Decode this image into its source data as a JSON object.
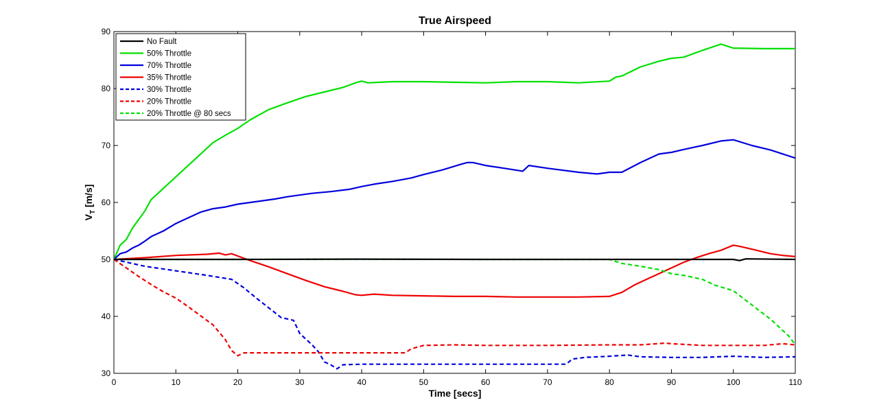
{
  "chart_data": {
    "type": "line",
    "title": "True Airspeed",
    "xlabel": "Time [secs]",
    "ylabel_main": "V",
    "ylabel_sub": "T",
    "ylabel_unit": " [m/s]",
    "xlim": [
      0,
      110
    ],
    "ylim": [
      30,
      90
    ],
    "xticks": [
      0,
      10,
      20,
      30,
      40,
      50,
      60,
      70,
      80,
      90,
      100,
      110
    ],
    "yticks": [
      30,
      40,
      50,
      60,
      70,
      80,
      90
    ],
    "grid": false,
    "legend_position": "top-left",
    "series": [
      {
        "name": "No Fault",
        "color": "#000000",
        "dash": false,
        "x": [
          0,
          10,
          20,
          40,
          60,
          80,
          95,
          100,
          101,
          102,
          110
        ],
        "y": [
          50,
          50,
          50,
          50.05,
          50,
          50,
          50,
          50,
          49.8,
          50.1,
          50
        ]
      },
      {
        "name": "50% Throttle",
        "color": "#00e000",
        "dash": false,
        "x": [
          0,
          1,
          2,
          3,
          4,
          5,
          6,
          8,
          10,
          12,
          14,
          16,
          18,
          20,
          22,
          25,
          28,
          31,
          34,
          37,
          39,
          40,
          41,
          45,
          50,
          55,
          60,
          65,
          70,
          75,
          80,
          81,
          82,
          85,
          88,
          90,
          92,
          95,
          98,
          100,
          105,
          110
        ],
        "y": [
          50,
          52.5,
          53.5,
          55.5,
          57,
          58.5,
          60.5,
          62.5,
          64.5,
          66.5,
          68.5,
          70.5,
          71.8,
          73,
          74.5,
          76.3,
          77.5,
          78.6,
          79.4,
          80.2,
          81,
          81.3,
          81,
          81.2,
          81.2,
          81.1,
          81.0,
          81.2,
          81.2,
          81.0,
          81.3,
          82.0,
          82.2,
          83.8,
          84.8,
          85.3,
          85.5,
          86.7,
          87.8,
          87.1,
          87.0,
          87.0
        ]
      },
      {
        "name": "70% Throttle",
        "color": "#0000dd",
        "dash": false,
        "x": [
          0,
          1,
          2,
          3,
          4,
          5,
          6,
          8,
          10,
          12,
          14,
          16,
          18,
          20,
          22,
          24,
          26,
          28,
          30,
          32,
          35,
          38,
          40,
          42,
          45,
          48,
          50,
          53,
          56,
          57,
          58,
          60,
          63,
          66,
          67,
          70,
          75,
          78,
          80,
          82,
          85,
          88,
          90,
          92,
          95,
          98,
          100,
          103,
          106,
          110
        ],
        "y": [
          50,
          51,
          51.3,
          52,
          52.5,
          53.2,
          54,
          55,
          56.3,
          57.3,
          58.3,
          58.9,
          59.2,
          59.7,
          60.0,
          60.3,
          60.6,
          61.0,
          61.3,
          61.6,
          61.9,
          62.3,
          62.8,
          63.2,
          63.7,
          64.3,
          64.9,
          65.7,
          66.7,
          67.0,
          67.0,
          66.5,
          66.0,
          65.5,
          66.5,
          66.0,
          65.3,
          65.0,
          65.3,
          65.3,
          67.0,
          68.5,
          68.8,
          69.3,
          70.0,
          70.8,
          71.0,
          70.0,
          69.2,
          67.8
        ]
      },
      {
        "name": "35% Throttle",
        "color": "#ee0000",
        "dash": false,
        "x": [
          0,
          5,
          10,
          15,
          17,
          18,
          19,
          20,
          22,
          25,
          28,
          31,
          34,
          37,
          39,
          40,
          42,
          45,
          50,
          55,
          60,
          65,
          70,
          75,
          80,
          82,
          84,
          86,
          88,
          90,
          92,
          94,
          96,
          98,
          100,
          101,
          103,
          106,
          108,
          110
        ],
        "y": [
          50,
          50.3,
          50.7,
          50.9,
          51.1,
          50.8,
          51.0,
          50.6,
          49.8,
          48.7,
          47.5,
          46.3,
          45.2,
          44.4,
          43.8,
          43.7,
          43.9,
          43.7,
          43.6,
          43.5,
          43.5,
          43.4,
          43.4,
          43.4,
          43.5,
          44.2,
          45.5,
          46.5,
          47.5,
          48.5,
          49.5,
          50.3,
          51.0,
          51.6,
          52.5,
          52.3,
          51.8,
          51.0,
          50.7,
          50.5
        ]
      },
      {
        "name": "30% Throttle",
        "color": "#0000dd",
        "dash": true,
        "x": [
          0,
          5,
          10,
          15,
          19,
          21,
          23,
          25,
          27,
          29,
          30,
          31,
          32,
          33,
          34,
          35,
          36,
          37,
          40,
          50,
          60,
          70,
          73,
          74,
          76,
          80,
          83,
          85,
          90,
          95,
          100,
          105,
          110
        ],
        "y": [
          50,
          48.8,
          48.0,
          47.2,
          46.5,
          45.0,
          43.2,
          41.5,
          39.8,
          39.3,
          37.0,
          36.0,
          35.0,
          33.8,
          32.0,
          31.5,
          30.8,
          31.5,
          31.6,
          31.6,
          31.6,
          31.6,
          31.6,
          32.5,
          32.8,
          33.0,
          33.2,
          32.9,
          32.8,
          32.8,
          33.0,
          32.8,
          32.9
        ]
      },
      {
        "name": "20% Throttle",
        "color": "#ee0000",
        "dash": true,
        "x": [
          0,
          2,
          4,
          6,
          8,
          10,
          12,
          14,
          16,
          18,
          19,
          20,
          21,
          25,
          30,
          35,
          40,
          47,
          48,
          50,
          55,
          60,
          70,
          80,
          85,
          89,
          90,
          95,
          100,
          105,
          108,
          110
        ],
        "y": [
          50,
          48.5,
          47.0,
          45.6,
          44.3,
          43.2,
          41.7,
          40.1,
          38.5,
          35.9,
          34.0,
          33.1,
          33.6,
          33.6,
          33.6,
          33.6,
          33.6,
          33.6,
          34.3,
          34.9,
          35.0,
          34.9,
          34.9,
          35.0,
          35.0,
          35.3,
          35.2,
          34.9,
          34.9,
          34.9,
          35.2,
          35.0
        ]
      },
      {
        "name": "20% Throttle @ 80 secs",
        "color": "#00e000",
        "dash": true,
        "x": [
          0,
          10,
          20,
          40,
          60,
          80,
          82,
          85,
          88,
          90,
          92,
          95,
          97,
          100,
          103,
          106,
          109,
          110
        ],
        "y": [
          50,
          50,
          50,
          50.05,
          50,
          50,
          49.3,
          48.8,
          48.2,
          47.5,
          47.2,
          46.5,
          45.5,
          44.5,
          42.0,
          39.5,
          36.5,
          35.0
        ]
      }
    ]
  }
}
